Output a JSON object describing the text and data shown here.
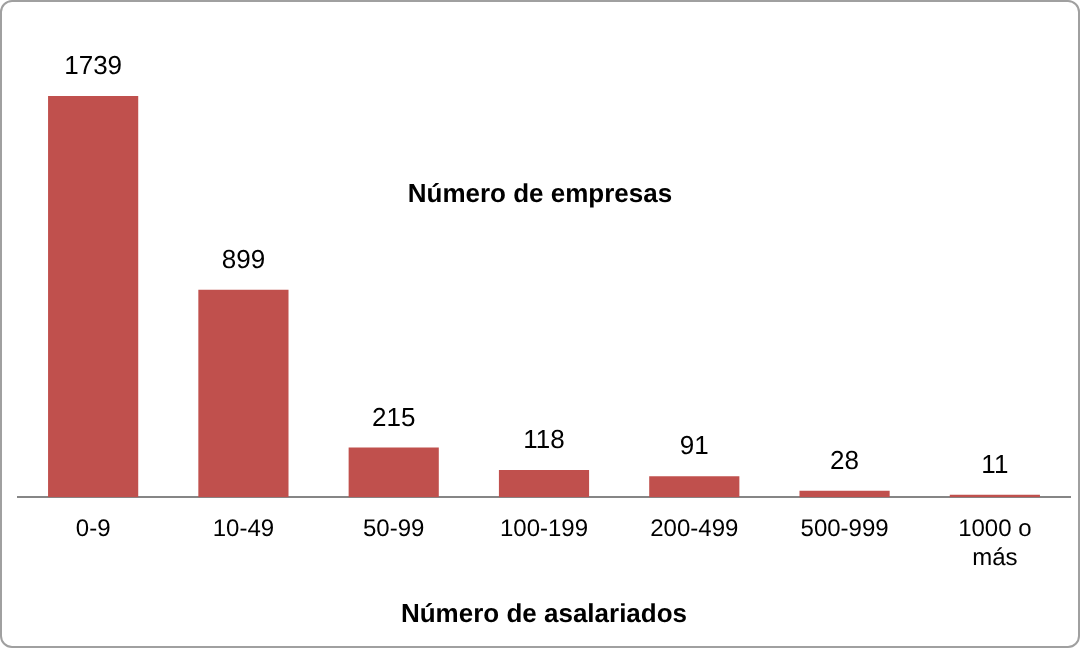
{
  "chart_data": {
    "type": "bar",
    "title": "Número de empresas",
    "xlabel": "Número de asalariados",
    "categories": [
      "0-9",
      "10-49",
      "50-99",
      "100-199",
      "200-499",
      "500-999",
      "1000 o más"
    ],
    "values": [
      1739,
      899,
      215,
      118,
      91,
      28,
      11
    ],
    "color": "#c0504d",
    "data_labels": true,
    "grid": false,
    "legend": false
  }
}
